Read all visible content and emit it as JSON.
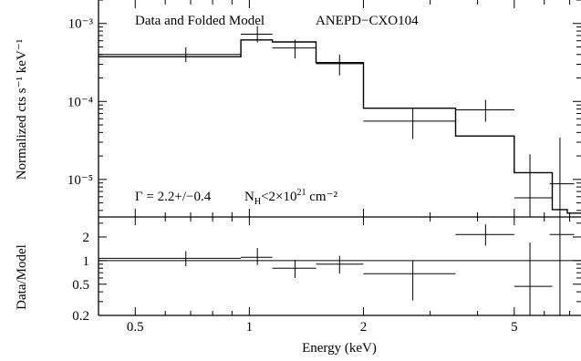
{
  "chart_data": [
    {
      "type": "scatter",
      "panel": "top",
      "title": "Data and Folded Model",
      "source_label": "ANEPD−CXO104",
      "ylabel": "Normalized cts s⁻¹ keV⁻¹",
      "xlabel": "",
      "x_scale": "log",
      "y_scale": "log",
      "xlim": [
        0.4,
        7.5
      ],
      "ylim": [
        3.3e-06,
        0.002
      ],
      "ytick_labels": [
        "10⁻³",
        "10⁻⁴",
        "10⁻⁵"
      ],
      "ytick_values": [
        0.001,
        0.0001,
        1e-05
      ],
      "annotations": {
        "gamma": "Γ = 2.2+/−0.4",
        "nh_prefix": "N",
        "nh_sub": "H",
        "nh_mid": "<2×10",
        "nh_exp": "21",
        "nh_unit": " cm⁻²"
      },
      "data": [
        {
          "x": 0.68,
          "xlo": 0.4,
          "xhi": 0.95,
          "y": 0.0004,
          "ylo": 0.00032,
          "yhi": 0.000495
        },
        {
          "x": 1.05,
          "xlo": 0.95,
          "xhi": 1.15,
          "y": 0.00073,
          "ylo": 0.00057,
          "yhi": 0.00093
        },
        {
          "x": 1.32,
          "xlo": 1.15,
          "xhi": 1.5,
          "y": 0.000485,
          "ylo": 0.000355,
          "yhi": 0.00062
        },
        {
          "x": 1.73,
          "xlo": 1.5,
          "xhi": 2.0,
          "y": 0.000305,
          "ylo": 0.000215,
          "yhi": 0.0004
        },
        {
          "x": 2.7,
          "xlo": 2.0,
          "xhi": 3.5,
          "y": 5.6e-05,
          "ylo": 3.3e-05,
          "yhi": 8.2e-05
        },
        {
          "x": 4.2,
          "xlo": 3.5,
          "xhi": 5.0,
          "y": 7.8e-05,
          "ylo": 5.5e-05,
          "yhi": 0.000105
        },
        {
          "x": 5.5,
          "xlo": 5.0,
          "xhi": 6.3,
          "y": 5.8e-06,
          "ylo": 3.3e-06,
          "yhi": 2.1e-05
        },
        {
          "x": 6.6,
          "xlo": 6.2,
          "xhi": 7.2,
          "y": 8.8e-06,
          "ylo": 3.3e-06,
          "yhi": 3.45e-05
        }
      ],
      "model_steps": [
        {
          "xlo": 0.4,
          "xhi": 0.95,
          "y": 0.000375
        },
        {
          "xlo": 0.95,
          "xhi": 1.15,
          "y": 0.000615
        },
        {
          "xlo": 1.15,
          "xhi": 1.5,
          "y": 0.00058
        },
        {
          "xlo": 1.5,
          "xhi": 2.0,
          "y": 0.000315
        },
        {
          "xlo": 2.0,
          "xhi": 3.5,
          "y": 8.2e-05
        },
        {
          "xlo": 3.5,
          "xhi": 5.0,
          "y": 3.6e-05
        },
        {
          "xlo": 5.0,
          "xhi": 6.3,
          "y": 1.22e-05
        },
        {
          "xlo": 6.3,
          "xhi": 6.9,
          "y": 4.1e-06
        },
        {
          "xlo": 6.9,
          "xhi": 7.5,
          "y": 3.7e-06
        }
      ]
    },
    {
      "type": "scatter",
      "panel": "bottom",
      "title": "",
      "xlabel": "Energy (keV)",
      "ylabel": "Data/Model",
      "x_scale": "log",
      "y_scale": "log",
      "xlim": [
        0.4,
        7.5
      ],
      "ylim": [
        0.2,
        3.6
      ],
      "xtick_labels": [
        "0.5",
        "1",
        "2",
        "5"
      ],
      "xtick_values": [
        0.5,
        1,
        2,
        5
      ],
      "ytick_labels": [
        "2",
        "1",
        "0.5",
        "0.2"
      ],
      "ytick_values": [
        2,
        1,
        0.5,
        0.2
      ],
      "reference_line": 1,
      "data": [
        {
          "x": 0.68,
          "xlo": 0.4,
          "xhi": 0.95,
          "y": 1.07,
          "ylo": 0.85,
          "yhi": 1.32
        },
        {
          "x": 1.05,
          "xlo": 0.95,
          "xhi": 1.15,
          "y": 1.1,
          "ylo": 0.88,
          "yhi": 1.45
        },
        {
          "x": 1.32,
          "xlo": 1.15,
          "xhi": 1.5,
          "y": 0.8,
          "ylo": 0.6,
          "yhi": 1.02
        },
        {
          "x": 1.73,
          "xlo": 1.5,
          "xhi": 2.0,
          "y": 0.9,
          "ylo": 0.68,
          "yhi": 1.15
        },
        {
          "x": 2.7,
          "xlo": 2.0,
          "xhi": 3.5,
          "y": 0.68,
          "ylo": 0.31,
          "yhi": 0.99
        },
        {
          "x": 4.2,
          "xlo": 3.5,
          "xhi": 5.0,
          "y": 2.15,
          "ylo": 1.55,
          "yhi": 2.9
        },
        {
          "x": 5.5,
          "xlo": 5.0,
          "xhi": 6.3,
          "y": 0.47,
          "ylo": 0.2,
          "yhi": 1.7
        },
        {
          "x": 6.6,
          "xlo": 6.2,
          "xhi": 7.2,
          "y": 2.15,
          "ylo": 0.2,
          "yhi": 3.6
        }
      ]
    }
  ]
}
